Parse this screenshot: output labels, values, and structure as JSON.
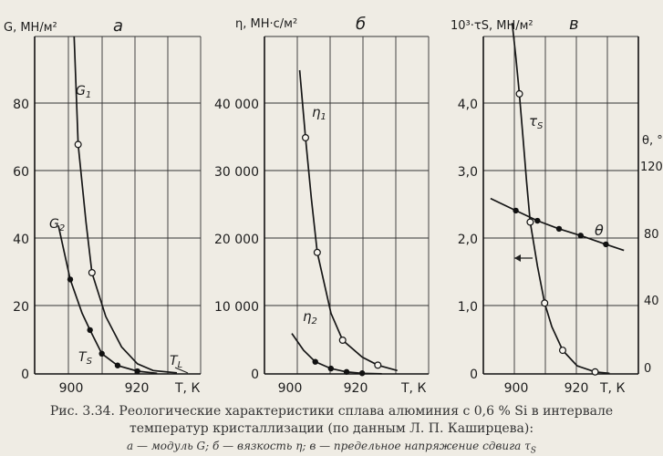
{
  "caption": {
    "line1": "Рис. 3.34. Реологические характеристики сплава алюминия с 0,6 % Si в интервале",
    "line2": "температур кристаллизации (по данным Л. П. Каширцева):",
    "line3": "а — модуль G; б — вязкость η; в — предельное напряжение сдвига τ",
    "line3_sub": "S"
  },
  "chart_data": [
    {
      "type": "line",
      "panel_letter": "а",
      "ylabel": "G, МН/м²",
      "xlabel": "T, К",
      "x_ticks": [
        "900",
        "920"
      ],
      "y_ticks": [
        "0",
        "20",
        "40",
        "60",
        "80"
      ],
      "xlim": [
        894,
        936
      ],
      "ylim": [
        0,
        100
      ],
      "annotations": [
        "TS",
        "TL"
      ],
      "series": [
        {
          "name": "G1",
          "points": [
            [
              904,
              100
            ],
            [
              905,
              68
            ],
            [
              907,
              45
            ],
            [
              908.5,
              30
            ],
            [
              912,
              17
            ],
            [
              916,
              8
            ],
            [
              920,
              3
            ],
            [
              924,
              1
            ],
            [
              930,
              0.3
            ]
          ]
        },
        {
          "name": "G2",
          "points": [
            [
              900,
              44
            ],
            [
              903,
              28
            ],
            [
              906,
              18
            ],
            [
              908,
              13
            ],
            [
              911,
              6
            ],
            [
              915,
              2.5
            ],
            [
              920,
              0.8
            ],
            [
              925,
              0.2
            ]
          ]
        }
      ]
    },
    {
      "type": "line",
      "panel_letter": "б",
      "ylabel": "η, МН·с/м²",
      "xlabel": "T, К",
      "x_ticks": [
        "900",
        "920"
      ],
      "y_ticks": [
        "0",
        "10 000",
        "20 000",
        "30 000",
        "40 000"
      ],
      "xlim": [
        893,
        935
      ],
      "ylim": [
        0,
        50000
      ],
      "series": [
        {
          "name": "η1",
          "points": [
            [
              902,
              45000
            ],
            [
              903.5,
              35000
            ],
            [
              905,
              26000
            ],
            [
              906.5,
              18000
            ],
            [
              910,
              9000
            ],
            [
              913,
              5000
            ],
            [
              918,
              2500
            ],
            [
              922,
              1300
            ],
            [
              927,
              500
            ]
          ]
        },
        {
          "name": "η2",
          "points": [
            [
              900,
              6000
            ],
            [
              903,
              3500
            ],
            [
              906,
              1800
            ],
            [
              910,
              800
            ],
            [
              914,
              300
            ],
            [
              918,
              100
            ],
            [
              923,
              30
            ]
          ]
        }
      ]
    },
    {
      "type": "line",
      "panel_letter": "в",
      "ylabel": "10³·τS, МН/м²",
      "xlabel": "T, К",
      "y2label": "θ, °С",
      "x_ticks": [
        "900",
        "920"
      ],
      "y_ticks": [
        "0",
        "1,0",
        "2,0",
        "3,0",
        "4,0"
      ],
      "y2_ticks": [
        "0",
        "40",
        "80",
        "120"
      ],
      "xlim": [
        893,
        936
      ],
      "ylim": [
        0,
        5
      ],
      "y2lim": [
        0,
        150
      ],
      "annotations": [
        "θ"
      ],
      "series": [
        {
          "name": "τS",
          "points": [
            [
              901,
              5.2
            ],
            [
              902,
              4.7
            ],
            [
              903,
              4.15
            ],
            [
              904,
              3.5
            ],
            [
              905,
              2.85
            ],
            [
              906,
              2.25
            ],
            [
              908,
              1.6
            ],
            [
              910,
              1.05
            ],
            [
              912,
              0.7
            ],
            [
              915,
              0.35
            ],
            [
              919,
              0.12
            ],
            [
              924,
              0.03
            ],
            [
              928,
              0.01
            ]
          ]
        },
        {
          "name": "θ",
          "points": [
            [
              895,
              2.6
            ],
            [
              902,
              2.42
            ],
            [
              908,
              2.27
            ],
            [
              914,
              2.15
            ],
            [
              920,
              2.05
            ],
            [
              927,
              1.92
            ],
            [
              932,
              1.83
            ]
          ]
        }
      ]
    }
  ]
}
